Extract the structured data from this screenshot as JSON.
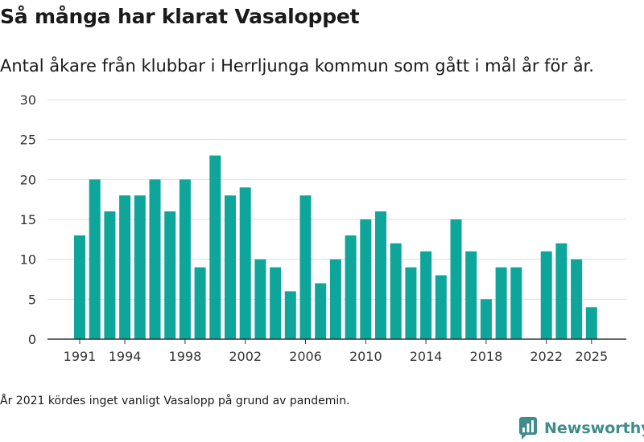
{
  "title": "Så många har klarat Vasaloppet",
  "subtitle": "Antal åkare från klubbar i Herrljunga kommun som gått i mål år för år.",
  "footnote": "År 2021 kördes inget vanligt Vasalopp på grund av pandemin.",
  "brand": {
    "name": "Newsworthy",
    "icon": "newsworthy-logo-icon"
  },
  "colors": {
    "bar": "#0ea59b",
    "grid": "#dddddd",
    "axis": "#333333",
    "text": "#333333",
    "brand": "#3f8c8a"
  },
  "chart_data": {
    "type": "bar",
    "x": [
      1991,
      1992,
      1993,
      1994,
      1995,
      1996,
      1997,
      1998,
      1999,
      2000,
      2001,
      2002,
      2003,
      2004,
      2005,
      2006,
      2007,
      2008,
      2009,
      2010,
      2011,
      2012,
      2013,
      2014,
      2015,
      2016,
      2017,
      2018,
      2019,
      2020,
      2021,
      2022,
      2023,
      2024,
      2025
    ],
    "values": [
      13,
      20,
      16,
      18,
      18,
      20,
      16,
      20,
      9,
      23,
      18,
      19,
      10,
      9,
      6,
      18,
      7,
      10,
      13,
      15,
      16,
      12,
      9,
      11,
      8,
      15,
      11,
      5,
      9,
      9,
      null,
      11,
      12,
      10,
      4
    ],
    "ylim": [
      0,
      30
    ],
    "yticks": [
      0,
      5,
      10,
      15,
      20,
      25,
      30
    ],
    "xtick_labels": [
      "1991",
      "1994",
      "1998",
      "2002",
      "2006",
      "2010",
      "2014",
      "2018",
      "2022",
      "2025"
    ],
    "grid": true,
    "xlabel": "",
    "ylabel": ""
  }
}
